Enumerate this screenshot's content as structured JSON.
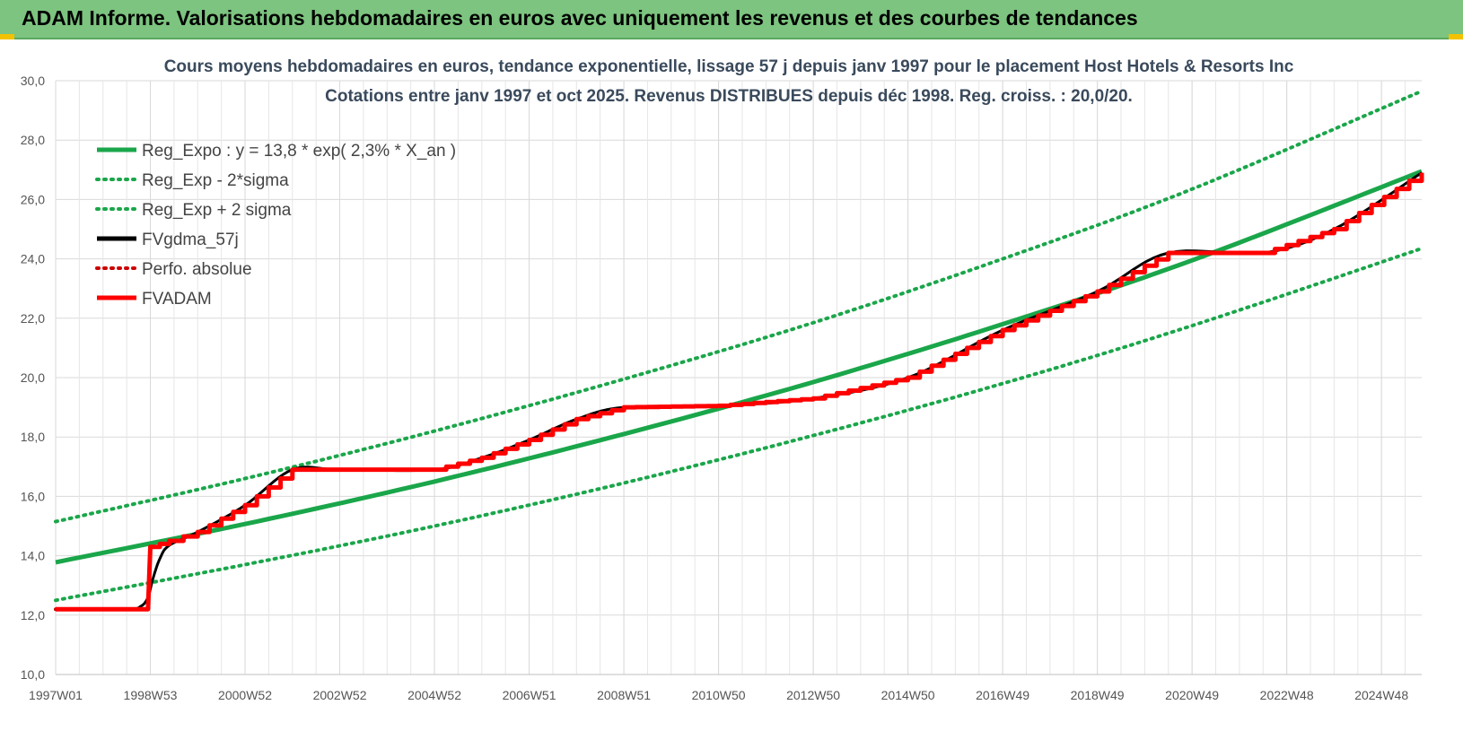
{
  "header": {
    "title": "ADAM Informe. Valorisations hebdomadaires en euros avec uniquement les revenus et des courbes de tendances"
  },
  "chart_data": {
    "type": "line",
    "title": "Cours moyens hebdomadaires en euros, tendance exponentielle, lissage 57 j depuis janv 1997 pour le placement Host Hotels & Resorts Inc",
    "subtitle": "Cotations entre janv 1997 et oct 2025. Revenus DISTRIBUES depuis déc 1998. Reg. croiss. : 20,0/20.",
    "xlabel": "",
    "ylabel": "",
    "ylim": [
      10,
      30
    ],
    "xlim": [
      1997.0,
      2025.85
    ],
    "yticks": [
      "10,0",
      "12,0",
      "14,0",
      "16,0",
      "18,0",
      "20,0",
      "22,0",
      "24,0",
      "26,0",
      "28,0",
      "30,0"
    ],
    "xticks": [
      {
        "label": "1997W01",
        "x": 1997.0
      },
      {
        "label": "1998W53",
        "x": 1999.0
      },
      {
        "label": "2000W52",
        "x": 2001.0
      },
      {
        "label": "2002W52",
        "x": 2003.0
      },
      {
        "label": "2004W52",
        "x": 2005.0
      },
      {
        "label": "2006W51",
        "x": 2007.0
      },
      {
        "label": "2008W51",
        "x": 2009.0
      },
      {
        "label": "2010W50",
        "x": 2011.0
      },
      {
        "label": "2012W50",
        "x": 2013.0
      },
      {
        "label": "2014W50",
        "x": 2015.0
      },
      {
        "label": "2016W49",
        "x": 2017.0
      },
      {
        "label": "2018W49",
        "x": 2019.0
      },
      {
        "label": "2020W49",
        "x": 2021.0
      },
      {
        "label": "2022W48",
        "x": 2023.0
      },
      {
        "label": "2024W48",
        "x": 2025.0
      }
    ],
    "grid": true,
    "legend_position": "top-left",
    "series": [
      {
        "name": "Reg_Expo : y = 13,8 * exp( 2,3% *  X_an )",
        "color": "#1aa64a",
        "style": "solid",
        "x": [
          1997.0,
          2001.0,
          2005.0,
          2009.0,
          2013.0,
          2017.0,
          2021.0,
          2025.85
        ],
        "values": [
          13.78,
          15.07,
          16.5,
          18.1,
          19.85,
          21.8,
          23.95,
          26.95
        ]
      },
      {
        "name": "Reg_Exp - 2*sigma",
        "color": "#1aa64a",
        "style": "dotted",
        "x": [
          1997.0,
          2001.0,
          2005.0,
          2009.0,
          2013.0,
          2017.0,
          2021.0,
          2025.85
        ],
        "values": [
          12.5,
          13.7,
          15.0,
          16.45,
          18.05,
          19.8,
          21.75,
          24.35
        ]
      },
      {
        "name": "Reg_Exp + 2 sigma",
        "color": "#1aa64a",
        "style": "dotted",
        "x": [
          1997.0,
          2001.0,
          2005.0,
          2009.0,
          2013.0,
          2017.0,
          2021.0,
          2025.85
        ],
        "values": [
          15.15,
          16.6,
          18.2,
          19.95,
          21.85,
          24.0,
          26.35,
          29.65
        ]
      },
      {
        "name": "FVgdma_57j",
        "color": "#000000",
        "style": "solid",
        "x": [
          1997.0,
          1998.5,
          1998.8,
          1998.95,
          1999.05,
          1999.2,
          1999.4,
          2000.0,
          2001.0,
          2002.0,
          2003.0,
          2005.0,
          2006.0,
          2007.0,
          2008.0,
          2009.0,
          2011.0,
          2013.0,
          2015.0,
          2017.0,
          2019.0,
          2020.5,
          2022.5,
          2024.0,
          2025.85
        ],
        "values": [
          12.2,
          12.2,
          12.3,
          12.6,
          13.2,
          13.9,
          14.35,
          14.8,
          15.7,
          16.9,
          16.9,
          16.9,
          17.3,
          17.9,
          18.6,
          19.0,
          19.05,
          19.3,
          20.0,
          21.6,
          22.9,
          24.2,
          24.2,
          25.0,
          26.9
        ]
      },
      {
        "name": "Perfo. absolue",
        "color": "#cc0000",
        "style": "dotted",
        "x": [
          1997.0,
          1998.95,
          1999.0,
          1999.4,
          2000.0,
          2001.0,
          2002.0,
          2003.0,
          2005.0,
          2006.0,
          2007.0,
          2008.0,
          2009.0,
          2011.0,
          2013.0,
          2015.0,
          2017.0,
          2019.0,
          2020.5,
          2022.5,
          2024.0,
          2025.85
        ],
        "values": [
          12.2,
          12.2,
          14.3,
          14.5,
          14.8,
          15.7,
          16.9,
          16.9,
          16.9,
          17.3,
          17.9,
          18.6,
          19.0,
          19.05,
          19.3,
          20.0,
          21.6,
          22.9,
          24.2,
          24.2,
          25.0,
          26.9
        ]
      },
      {
        "name": "FVADAM",
        "color": "#ff0000",
        "style": "solid",
        "x": [
          1997.0,
          1998.95,
          1999.0,
          1999.4,
          2000.0,
          2001.0,
          2002.0,
          2003.0,
          2005.0,
          2006.0,
          2007.0,
          2008.0,
          2009.0,
          2011.0,
          2013.0,
          2015.0,
          2017.0,
          2019.0,
          2020.5,
          2022.5,
          2024.0,
          2025.85
        ],
        "values": [
          12.2,
          12.2,
          14.3,
          14.5,
          14.8,
          15.7,
          16.9,
          16.9,
          16.9,
          17.3,
          17.9,
          18.6,
          19.0,
          19.05,
          19.3,
          20.0,
          21.6,
          22.9,
          24.2,
          24.2,
          25.0,
          26.9
        ]
      }
    ]
  }
}
